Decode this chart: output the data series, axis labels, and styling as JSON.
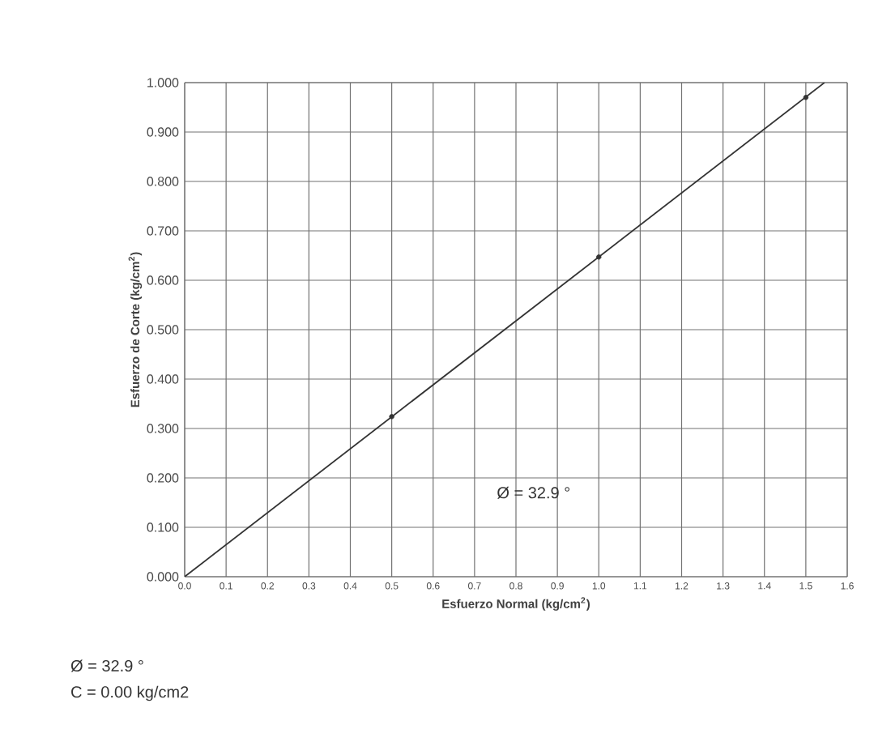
{
  "chart_data": {
    "type": "line",
    "xlabel": "Esfuerzo Normal (kg/cm$^{2}$)",
    "ylabel": "Esfuerzo de Corte (kg/cm$^{2}$)",
    "series": [
      {
        "color": "#333333",
        "x": [
          0,
          1.545
        ],
        "values": [
          0,
          1.0
        ],
        "marker": "none",
        "line_style": "solid"
      },
      {
        "type": "scatter",
        "color": "#333333",
        "x": [
          0.5,
          1.0,
          1.5
        ],
        "values": [
          0.324,
          0.647,
          0.97
        ],
        "marker": "circle"
      }
    ],
    "xlim": [
      0,
      1.6
    ],
    "ylim": [
      0,
      1.0
    ],
    "xticks": [
      {
        "value": 0,
        "label": "0.0"
      },
      {
        "value": 0.1,
        "label": "0.1"
      },
      {
        "value": 0.2,
        "label": "0.2"
      },
      {
        "value": 0.3,
        "label": "0.3"
      },
      {
        "value": 0.4,
        "label": "0.4"
      },
      {
        "value": 0.5,
        "label": "0.5"
      },
      {
        "value": 0.6,
        "label": "0.6"
      },
      {
        "value": 0.7,
        "label": "0.7"
      },
      {
        "value": 0.8,
        "label": "0.8"
      },
      {
        "value": 0.9,
        "label": "0.9"
      },
      {
        "value": 1.0,
        "label": "1.0"
      },
      {
        "value": 1.1,
        "label": "1.1"
      },
      {
        "value": 1.2,
        "label": "1.2"
      },
      {
        "value": 1.3,
        "label": "1.3"
      },
      {
        "value": 1.4,
        "label": "1.4"
      },
      {
        "value": 1.5,
        "label": "1.5"
      },
      {
        "value": 1.6,
        "label": "1.6"
      }
    ],
    "yticks": [
      {
        "value": 0,
        "label": "0.000"
      },
      {
        "value": 0.1,
        "label": "0.100"
      },
      {
        "value": 0.2,
        "label": "0.200"
      },
      {
        "value": 0.3,
        "label": "0.300"
      },
      {
        "value": 0.4,
        "label": "0.400"
      },
      {
        "value": 0.5,
        "label": "0.500"
      },
      {
        "value": 0.6,
        "label": "0.600"
      },
      {
        "value": 0.7,
        "label": "0.700"
      },
      {
        "value": 0.8,
        "label": "0.800"
      },
      {
        "value": 0.9,
        "label": "0.900"
      },
      {
        "value": 1.0,
        "label": "1.000"
      }
    ],
    "grid": true,
    "annotations": [
      "Ø = 32.9 °",
      "Ø = 32.9 °",
      "C = 0.00 kg/cm2"
    ]
  }
}
